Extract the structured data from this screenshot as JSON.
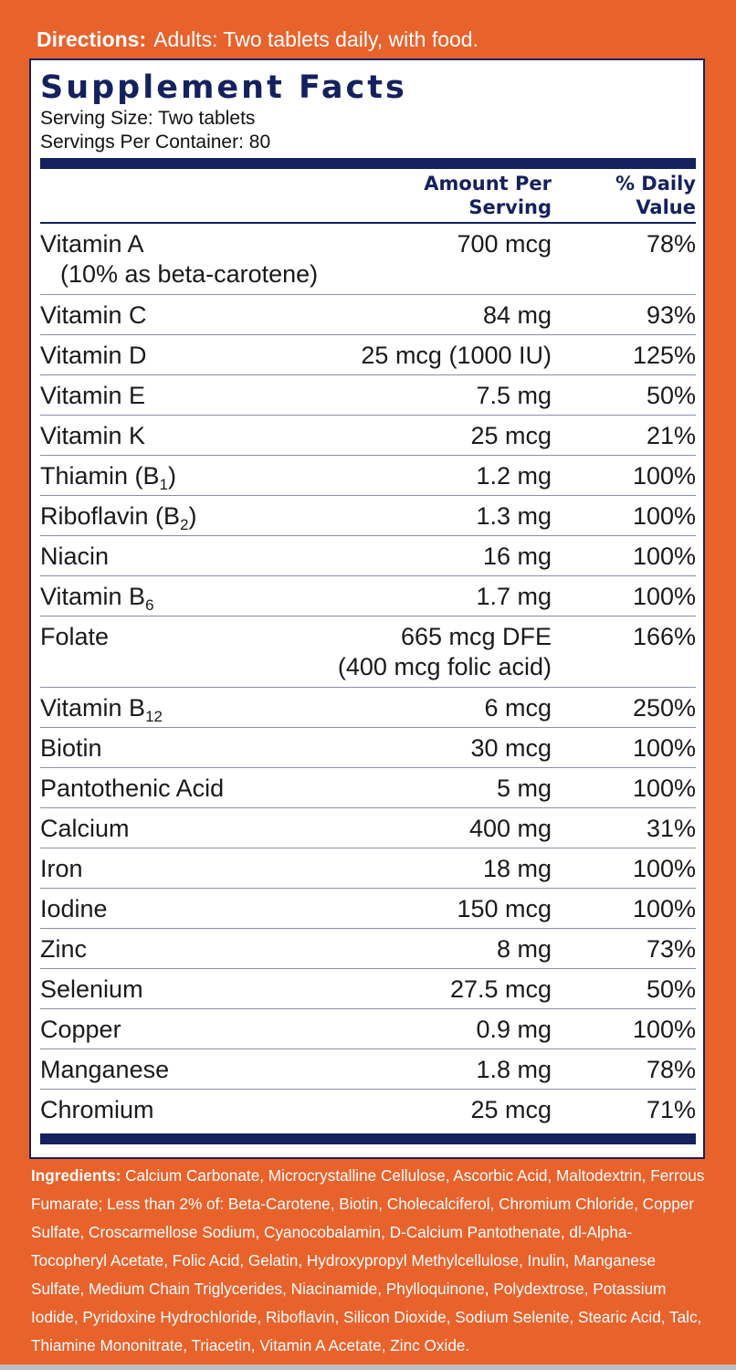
{
  "directions": {
    "label": "Directions:",
    "text": "Adults:  Two tablets daily, with food."
  },
  "facts": {
    "title": "Supplement Facts",
    "serving_size": "Serving Size: Two tablets",
    "servings_per_container": "Servings Per Container: 80",
    "col_amount_1": "Amount Per",
    "col_amount_2": "Serving",
    "col_dv_1": "% Daily",
    "col_dv_2": "Value"
  },
  "rows": [
    {
      "name": "Vitamin A",
      "name_line2": "(10% as beta-carotene)",
      "amount": "700 mcg",
      "dv": "78%"
    },
    {
      "name": "Vitamin C",
      "amount": "84 mg",
      "dv": "93%"
    },
    {
      "name": "Vitamin D",
      "amount": "25 mcg (1000 IU)",
      "dv": "125%"
    },
    {
      "name": "Vitamin E",
      "amount": "7.5 mg",
      "dv": "50%"
    },
    {
      "name": "Vitamin K",
      "amount": "25 mcg",
      "dv": "21%"
    },
    {
      "name": "Thiamin (B",
      "sub": "1",
      "name_after": ")",
      "amount": "1.2 mg",
      "dv": "100%"
    },
    {
      "name": "Riboflavin (B",
      "sub": "2",
      "name_after": ")",
      "amount": "1.3 mg",
      "dv": "100%"
    },
    {
      "name": "Niacin",
      "amount": "16 mg",
      "dv": "100%"
    },
    {
      "name": "Vitamin B",
      "sub": "6",
      "amount": "1.7 mg",
      "dv": "100%"
    },
    {
      "name": "Folate",
      "amount": "665 mcg DFE",
      "amount_line2": "(400 mcg folic acid)",
      "dv": "166%"
    },
    {
      "name": "Vitamin B",
      "sub": "12",
      "amount": "6 mcg",
      "dv": "250%"
    },
    {
      "name": "Biotin",
      "amount": "30 mcg",
      "dv": "100%"
    },
    {
      "name": "Pantothenic Acid",
      "amount": "5 mg",
      "dv": "100%"
    },
    {
      "name": "Calcium",
      "amount": "400 mg",
      "dv": "31%"
    },
    {
      "name": "Iron",
      "amount": "18 mg",
      "dv": "100%"
    },
    {
      "name": "Iodine",
      "amount": "150 mcg",
      "dv": "100%"
    },
    {
      "name": "Zinc",
      "amount": "8 mg",
      "dv": "73%"
    },
    {
      "name": "Selenium",
      "amount": "27.5 mcg",
      "dv": "50%"
    },
    {
      "name": "Copper",
      "amount": "0.9 mg",
      "dv": "100%"
    },
    {
      "name": "Manganese",
      "amount": "1.8 mg",
      "dv": "78%"
    },
    {
      "name": "Chromium",
      "amount": "25 mcg",
      "dv": "71%"
    }
  ],
  "ingredients": {
    "label": "Ingredients:",
    "text": "Calcium Carbonate, Microcrystalline  Cellulose, Ascorbic Acid, Maltodextrin, Ferrous Fumarate; Less than 2% of: Beta-Carotene, Biotin, Cholecalciferol, Chromium Chloride, Copper Sulfate, Croscarmellose Sodium, Cyanocobalamin, D-Calcium Pantothenate, dl-Alpha-Tocopheryl Acetate, Folic Acid, Gelatin, Hydroxypropyl Methylcellulose, Inulin, Manganese Sulfate, Medium Chain Triglycerides, Niacinamide, Phylloquinone, Polydextrose, Potassium Iodide, Pyridoxine Hydrochloride, Riboflavin, Silicon Dioxide, Sodium Selenite, Stearic Acid, Talc, Thiamine Mononitrate, Triacetin, Vitamin A Acetate, Zinc Oxide."
  },
  "colors": {
    "background": "#e8622c",
    "navy": "#15215e",
    "panel": "#ffffff"
  }
}
